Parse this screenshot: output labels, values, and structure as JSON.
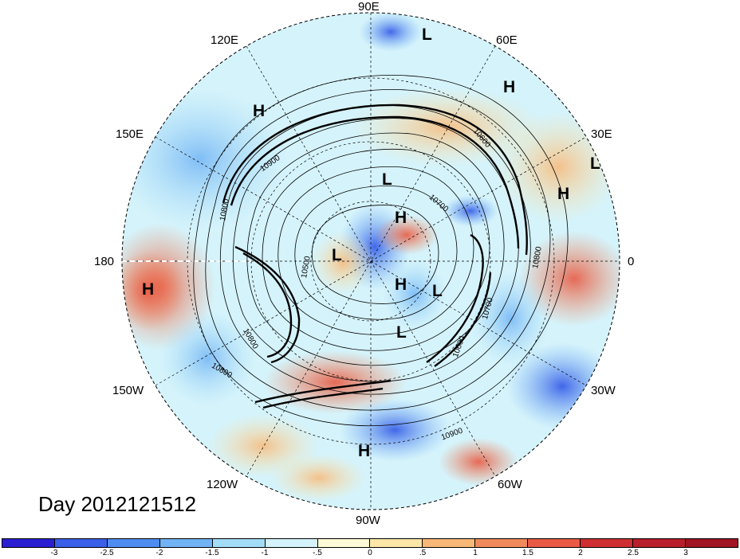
{
  "map": {
    "projection": "north polar stereographic",
    "date_label": "Day 2012121512",
    "longitude_labels": [
      "90E",
      "120E",
      "60E",
      "150E",
      "30E",
      "180",
      "0",
      "150W",
      "30W",
      "120W",
      "60W",
      "90W"
    ],
    "contour_labels": [
      "10900",
      "10800",
      "10700",
      "10600",
      "10800",
      "10800",
      "10900",
      "10600",
      "10500",
      "10700",
      "10800"
    ],
    "highs_lows": [
      "L",
      "H",
      "H",
      "L",
      "L",
      "H",
      "L",
      "H",
      "H",
      "L",
      "L",
      "H",
      "H"
    ],
    "colorbar": {
      "ticks": [
        "-3",
        "-2.5",
        "-2",
        "-1.5",
        "-1",
        "-.5",
        "0",
        ".5",
        "1",
        "1.5",
        "2",
        "2.5",
        "3"
      ],
      "colors": [
        "#2a1fd0",
        "#3a5fe8",
        "#4f8cf0",
        "#71b3f5",
        "#a3dcf7",
        "#d5f3fb",
        "#fdfbd7",
        "#fde6a8",
        "#f8b877",
        "#f08a5c",
        "#e85a45",
        "#cf2f32",
        "#a11423"
      ]
    }
  }
}
